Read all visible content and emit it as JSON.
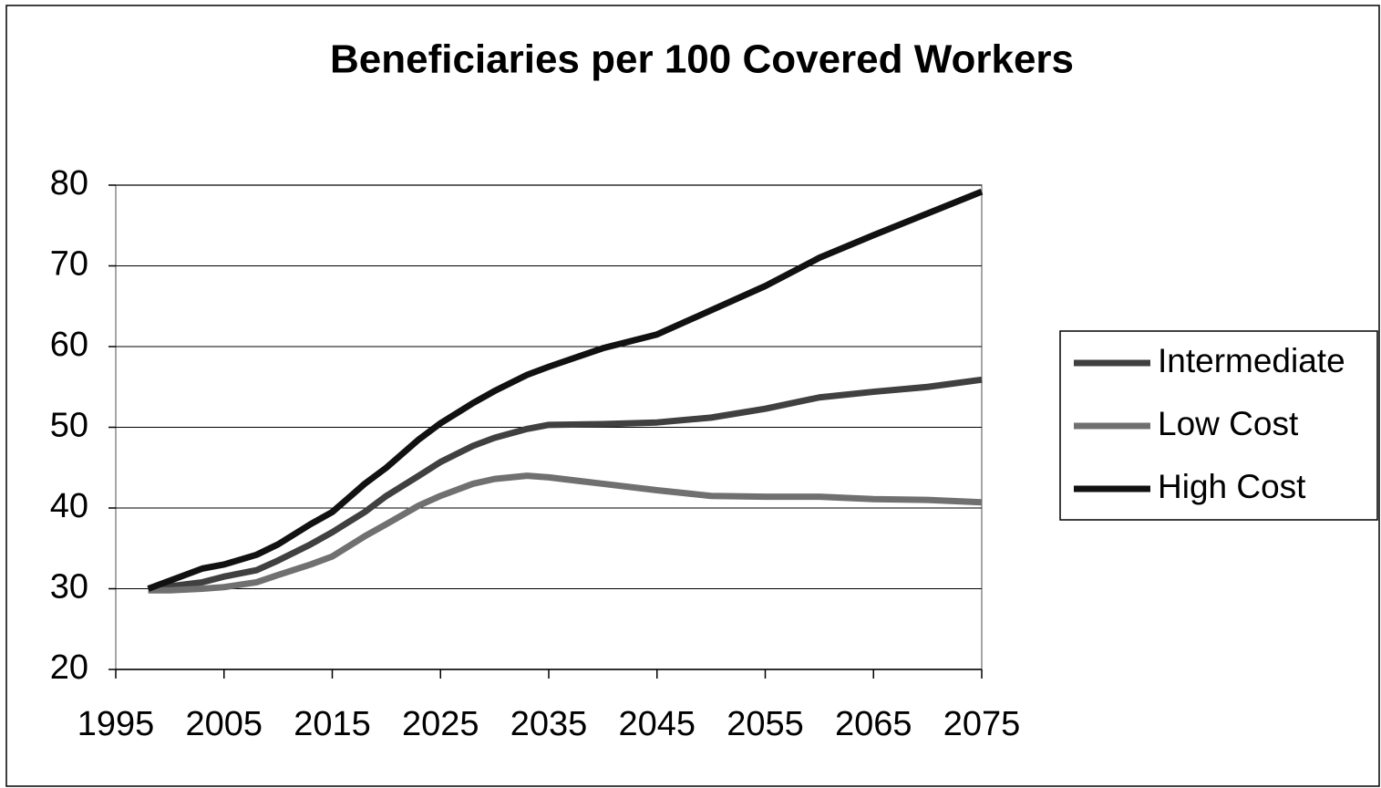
{
  "chart_data": {
    "type": "line",
    "title": "Beneficiaries per 100 Covered Workers",
    "x": [
      1998,
      2000,
      2003,
      2005,
      2008,
      2010,
      2013,
      2015,
      2018,
      2020,
      2023,
      2025,
      2028,
      2030,
      2033,
      2035,
      2040,
      2045,
      2050,
      2055,
      2060,
      2065,
      2070,
      2075
    ],
    "series": [
      {
        "name": "Intermediate",
        "color": "#404040",
        "values": [
          30,
          30.3,
          30.8,
          31.5,
          32.3,
          33.5,
          35.5,
          37,
          39.5,
          41.5,
          44,
          45.7,
          47.7,
          48.7,
          49.8,
          50.3,
          50.4,
          50.6,
          51.2,
          52.3,
          53.7,
          54.4,
          55,
          55.9
        ]
      },
      {
        "name": "Low Cost",
        "color": "#707070",
        "values": [
          29.8,
          29.8,
          30,
          30.2,
          30.8,
          31.7,
          33,
          34,
          36.5,
          38,
          40.3,
          41.5,
          43,
          43.6,
          44,
          43.8,
          43,
          42.2,
          41.5,
          41.4,
          41.4,
          41.1,
          41,
          40.7
        ]
      },
      {
        "name": "High Cost",
        "color": "#111111",
        "values": [
          30,
          31,
          32.5,
          33,
          34.2,
          35.5,
          38,
          39.5,
          43,
          45,
          48.5,
          50.5,
          53,
          54.5,
          56.5,
          57.5,
          59.8,
          61.5,
          64.5,
          67.5,
          71,
          73.8,
          76.5,
          79.2
        ]
      }
    ],
    "xlim": [
      1995,
      2075
    ],
    "xticks": [
      1995,
      2005,
      2015,
      2025,
      2035,
      2045,
      2055,
      2065,
      2075
    ],
    "ylim": [
      20,
      80
    ],
    "yticks": [
      20,
      30,
      40,
      50,
      60,
      70,
      80
    ],
    "grid": true,
    "legend": "right"
  }
}
